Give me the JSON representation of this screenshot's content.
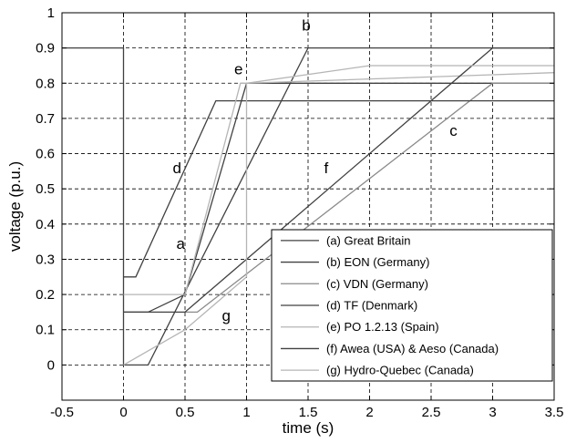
{
  "chart_data": {
    "type": "line",
    "title": "",
    "xlabel": "time (s)",
    "ylabel": "voltage (p.u.)",
    "xlim": [
      -0.5,
      3.5
    ],
    "ylim": [
      -0.1,
      1.0
    ],
    "grid": true,
    "legend_position": "bottom-right",
    "x_ticks": [
      "-0.5",
      "0",
      "0.5",
      "1",
      "1.5",
      "2",
      "2.5",
      "3",
      "3.5"
    ],
    "y_ticks": [
      "0",
      "0.1",
      "0.2",
      "0.3",
      "0.4",
      "0.5",
      "0.6",
      "0.7",
      "0.8",
      "0.9",
      "1"
    ],
    "series": [
      {
        "id": "a",
        "name": "(a) Great Britain",
        "color": "#404040",
        "points": [
          [
            0,
            0.15
          ],
          [
            0.2,
            0.15
          ],
          [
            0.5,
            0.2
          ],
          [
            1.0,
            0.8
          ],
          [
            3.5,
            0.8
          ]
        ]
      },
      {
        "id": "b",
        "name": "(b) EON (Germany)",
        "color": "#404040",
        "points": [
          [
            0,
            0.9
          ],
          [
            0,
            0
          ],
          [
            0.2,
            0
          ],
          [
            1.5,
            0.9
          ],
          [
            3.5,
            0.9
          ]
        ]
      },
      {
        "id": "c",
        "name": "(c) VDN (Germany)",
        "color": "#8a8a8a",
        "points": [
          [
            0.5,
            0.15
          ],
          [
            0.6,
            0.15
          ],
          [
            3.0,
            0.8
          ],
          [
            3.5,
            0.8
          ]
        ]
      },
      {
        "id": "d",
        "name": "(d) TF (Denmark)",
        "color": "#404040",
        "points": [
          [
            0,
            0.25
          ],
          [
            0.1,
            0.25
          ],
          [
            0.75,
            0.75
          ],
          [
            3.5,
            0.75
          ]
        ]
      },
      {
        "id": "e",
        "name": "(e) PO 1.2.13 (Spain)",
        "color": "#b5b5b5",
        "points": [
          [
            0,
            0.2
          ],
          [
            0.5,
            0.2
          ],
          [
            0.95,
            0.8
          ],
          [
            1.0,
            0.8
          ],
          [
            3.5,
            0.83
          ]
        ]
      },
      {
        "id": "f",
        "name": "(f) Awea (USA) & Aeso (Canada)",
        "color": "#404040",
        "points": [
          [
            0,
            0.15
          ],
          [
            0.5,
            0.15
          ],
          [
            3.0,
            0.9
          ],
          [
            3.5,
            0.9
          ]
        ]
      },
      {
        "id": "g",
        "name": "(g) Hydro-Quebec (Canada)",
        "color": "#b5b5b5",
        "points": [
          [
            0,
            0
          ],
          [
            0.5,
            0.1
          ],
          [
            1.0,
            0.25
          ],
          [
            1.0,
            0.8
          ],
          [
            2.0,
            0.85
          ],
          [
            3.5,
            0.85
          ]
        ]
      }
    ],
    "extra_segments": [
      {
        "color": "#404040",
        "points": [
          [
            -0.5,
            0.9
          ],
          [
            0,
            0.9
          ]
        ]
      }
    ],
    "annotations": [
      {
        "text": "a",
        "x": 0.43,
        "y": 0.33
      },
      {
        "text": "b",
        "x": 1.45,
        "y": 0.95
      },
      {
        "text": "c",
        "x": 2.65,
        "y": 0.65
      },
      {
        "text": "d",
        "x": 0.4,
        "y": 0.545
      },
      {
        "text": "e",
        "x": 0.9,
        "y": 0.825
      },
      {
        "text": "f",
        "x": 1.63,
        "y": 0.545
      },
      {
        "text": "g",
        "x": 0.8,
        "y": 0.125
      }
    ]
  }
}
